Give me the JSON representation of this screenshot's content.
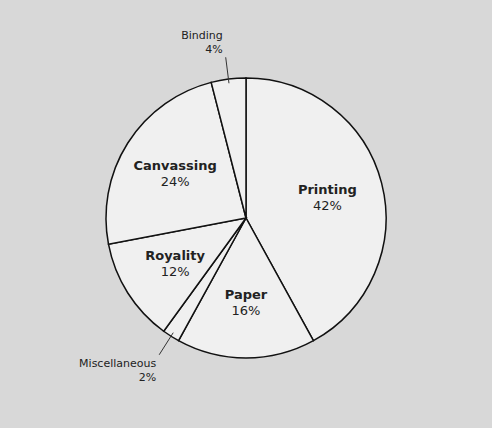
{
  "chart_data": {
    "type": "pie",
    "categories": [
      "Printing",
      "Paper",
      "Miscellaneous",
      "Royality",
      "Canvassing",
      "Binding"
    ],
    "values": [
      42,
      16,
      2,
      12,
      24,
      4
    ],
    "value_labels": [
      "42%",
      "16%",
      "2%",
      "12%",
      "24%",
      "4%"
    ],
    "colors": [
      "#f0f0f0",
      "#f0f0f0",
      "#f0f0f0",
      "#f0f0f0",
      "#f0f0f0",
      "#f0f0f0"
    ]
  }
}
